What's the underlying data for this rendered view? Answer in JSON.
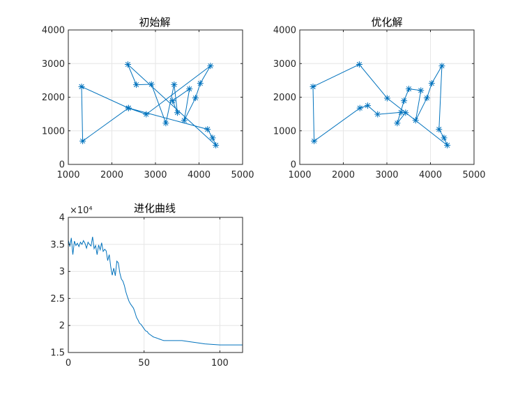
{
  "colors": {
    "line": "#0072BD",
    "grid": "#e6e6e6",
    "axis": "#262626",
    "background": "#ffffff"
  },
  "chart_data": [
    {
      "type": "line",
      "title": "初始解",
      "xlabel": "",
      "ylabel": "",
      "xlim": [
        1000,
        5000
      ],
      "ylim": [
        0,
        4000
      ],
      "xticks": [
        1000,
        2000,
        3000,
        4000,
        5000
      ],
      "yticks": [
        0,
        1000,
        2000,
        3000,
        4000
      ],
      "grid": true,
      "marker": "asterisk",
      "x": [
        1304,
        1330,
        2380,
        4196,
        4312,
        4386,
        2367,
        2560,
        2907,
        3238,
        3429,
        3504,
        3394,
        3780,
        3660,
        3918,
        4029,
        4263,
        2788,
        2381,
        1304
      ],
      "y": [
        2312,
        695,
        1676,
        1044,
        790,
        570,
        2975,
        2370,
        2383,
        1229,
        2376,
        1540,
        1894,
        2246,
        1310,
        1976,
        2411,
        2931,
        1491,
        1676,
        2312
      ]
    },
    {
      "type": "line",
      "title": "优化解",
      "xlabel": "",
      "ylabel": "",
      "xlim": [
        1000,
        5000
      ],
      "ylim": [
        0,
        4000
      ],
      "xticks": [
        1000,
        2000,
        3000,
        4000,
        5000
      ],
      "yticks": [
        0,
        1000,
        2000,
        3000,
        4000
      ],
      "grid": true,
      "marker": "asterisk",
      "x": [
        1304,
        1330,
        2380,
        2560,
        2788,
        3324,
        3429,
        3238,
        3394,
        3504,
        3780,
        3660,
        3918,
        4029,
        4263,
        4196,
        4312,
        4386,
        3007,
        2367,
        1304
      ],
      "y": [
        2312,
        695,
        1676,
        1750,
        1491,
        1550,
        1540,
        1229,
        1894,
        2246,
        2200,
        1310,
        1976,
        2411,
        2931,
        1044,
        790,
        570,
        1970,
        2975,
        2312
      ]
    },
    {
      "type": "line",
      "title": "进化曲线",
      "xlabel": "",
      "ylabel": "",
      "xlim": [
        0,
        115
      ],
      "ylim": [
        15000,
        40000
      ],
      "xticks": [
        0,
        50,
        100
      ],
      "yticks": [
        15000,
        20000,
        25000,
        30000,
        35000,
        40000
      ],
      "ytick_labels": [
        "1.5",
        "2",
        "2.5",
        "3",
        "3.5",
        "4"
      ],
      "y_exponent": "×10⁴",
      "grid": true,
      "x": [
        0,
        1,
        2,
        3,
        4,
        5,
        6,
        7,
        8,
        9,
        10,
        11,
        12,
        13,
        14,
        15,
        16,
        17,
        18,
        19,
        20,
        21,
        22,
        23,
        24,
        25,
        26,
        27,
        28,
        29,
        30,
        31,
        32,
        33,
        34,
        35,
        36,
        37,
        38,
        39,
        40,
        41,
        42,
        43,
        44,
        45,
        46,
        47,
        48,
        49,
        50,
        51,
        52,
        53,
        54,
        55,
        56,
        57,
        58,
        59,
        60,
        61,
        62,
        63,
        64,
        65,
        66,
        67,
        68,
        69,
        70,
        71,
        72,
        73,
        74,
        75,
        80,
        85,
        90,
        95,
        100,
        105,
        110,
        115
      ],
      "y": [
        35800,
        34600,
        36200,
        33100,
        35600,
        34800,
        35200,
        34600,
        35400,
        35000,
        35700,
        35200,
        34300,
        35400,
        35000,
        34700,
        36400,
        34200,
        34800,
        33100,
        34900,
        34000,
        35300,
        33700,
        34100,
        33800,
        32000,
        33100,
        30800,
        29300,
        30600,
        29200,
        31900,
        31600,
        29700,
        28600,
        28200,
        27400,
        26200,
        25300,
        24500,
        24000,
        23600,
        23200,
        22400,
        21500,
        21000,
        20400,
        20200,
        19800,
        19400,
        19000,
        18900,
        18500,
        18300,
        18100,
        17900,
        17800,
        17700,
        17600,
        17500,
        17400,
        17300,
        17200,
        17200,
        17200,
        17200,
        17200,
        17200,
        17200,
        17200,
        17200,
        17200,
        17200,
        17200,
        17200,
        17000,
        16800,
        16600,
        16500,
        16400,
        16400,
        16400,
        16400
      ]
    }
  ]
}
